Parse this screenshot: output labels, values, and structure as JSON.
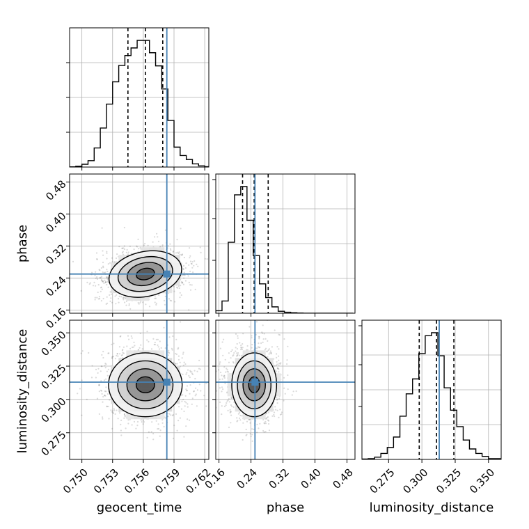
{
  "chart_data": {
    "type": "corner",
    "title": "",
    "parameters": [
      "geocent_time",
      "phase",
      "luminosity_distance"
    ],
    "axis_labels": {
      "x": [
        "geocent_time",
        "phase",
        "luminosity_distance"
      ],
      "y": [
        "phase",
        "luminosity_distance"
      ]
    },
    "grid": true,
    "axes": {
      "geocent_time": {
        "range": [
          0.7488,
          0.7624
        ],
        "ticks": [
          0.75,
          0.753,
          0.756,
          0.759,
          0.762
        ],
        "tick_labels": [
          "0.750",
          "0.753",
          "0.756",
          "0.759",
          "0.762"
        ]
      },
      "phase": {
        "range": [
          0.152,
          0.5
        ],
        "ticks": [
          0.16,
          0.24,
          0.32,
          0.4,
          0.48
        ],
        "tick_labels": [
          "0.16",
          "0.24",
          "0.32",
          "0.40",
          "0.48"
        ]
      },
      "luminosity_distance": {
        "range": [
          0.255,
          0.3595
        ],
        "ticks": [
          0.275,
          0.3,
          0.325,
          0.35
        ],
        "tick_labels": [
          "0.275",
          "0.300",
          "0.325",
          "0.350"
        ]
      }
    },
    "truths": {
      "color": "#4682b4",
      "geocent_time": 0.7583,
      "phase": 0.25,
      "luminosity_distance": 0.313
    },
    "quantiles": {
      "geocent_time": [
        0.7545,
        0.7562,
        0.7579
      ],
      "phase": [
        0.219,
        0.248,
        0.283
      ],
      "luminosity_distance": [
        0.298,
        0.311,
        0.324
      ]
    },
    "marginals": {
      "geocent_time": {
        "edges": [
          0.7488,
          0.7494,
          0.75,
          0.7506,
          0.7512,
          0.7518,
          0.7524,
          0.753,
          0.7536,
          0.7542,
          0.7548,
          0.7554,
          0.756,
          0.7566,
          0.7572,
          0.7578,
          0.7584,
          0.759,
          0.7596,
          0.7602,
          0.7608,
          0.7614,
          0.762,
          0.7626
        ],
        "counts": [
          0.5,
          2,
          7,
          16,
          48,
          98,
          158,
          214,
          255,
          280,
          299,
          318,
          318,
          287,
          254,
          196,
          117,
          50,
          29,
          19,
          8,
          3,
          1
        ]
      },
      "phase": {
        "edges": [
          0.152,
          0.1676,
          0.1832,
          0.1988,
          0.2144,
          0.23,
          0.2456,
          0.2612,
          0.2768,
          0.2924,
          0.308,
          0.3236,
          0.3392,
          0.3548,
          0.3704,
          0.386,
          0.4016,
          0.4172,
          0.4328,
          0.4484,
          0.464,
          0.4796,
          0.4952
        ],
        "counts": [
          5,
          25,
          145,
          242,
          259,
          190,
          118,
          60,
          32,
          13,
          4,
          2,
          1,
          0.5,
          0,
          0,
          0,
          0,
          0,
          0,
          0,
          0
        ]
      },
      "luminosity_distance": {
        "edges": [
          0.255,
          0.2597,
          0.2645,
          0.2692,
          0.274,
          0.2787,
          0.2835,
          0.2882,
          0.293,
          0.2977,
          0.3025,
          0.3072,
          0.312,
          0.3167,
          0.3215,
          0.3262,
          0.331,
          0.3357,
          0.3405,
          0.3452,
          0.35,
          0.3547,
          0.3595
        ],
        "counts": [
          0.5,
          1,
          3,
          8,
          16,
          30,
          58,
          88,
          108,
          142,
          166,
          170,
          139,
          96,
          66,
          44,
          26,
          14,
          8,
          4,
          1,
          1
        ]
      }
    },
    "joint": {
      "phase_vs_geocent_time": {
        "mean": [
          0.7562,
          0.25
        ],
        "sigma": [
          0.0018,
          0.028
        ],
        "rotation_deg": -12
      },
      "luminosity_distance_vs_geocent_time": {
        "mean": [
          0.7562,
          0.311
        ],
        "sigma": [
          0.0018,
          0.012
        ],
        "rotation_deg": 0
      },
      "luminosity_distance_vs_phase": {
        "mean": [
          0.248,
          0.311
        ],
        "sigma": [
          0.028,
          0.012
        ],
        "rotation_deg": 0
      }
    }
  }
}
